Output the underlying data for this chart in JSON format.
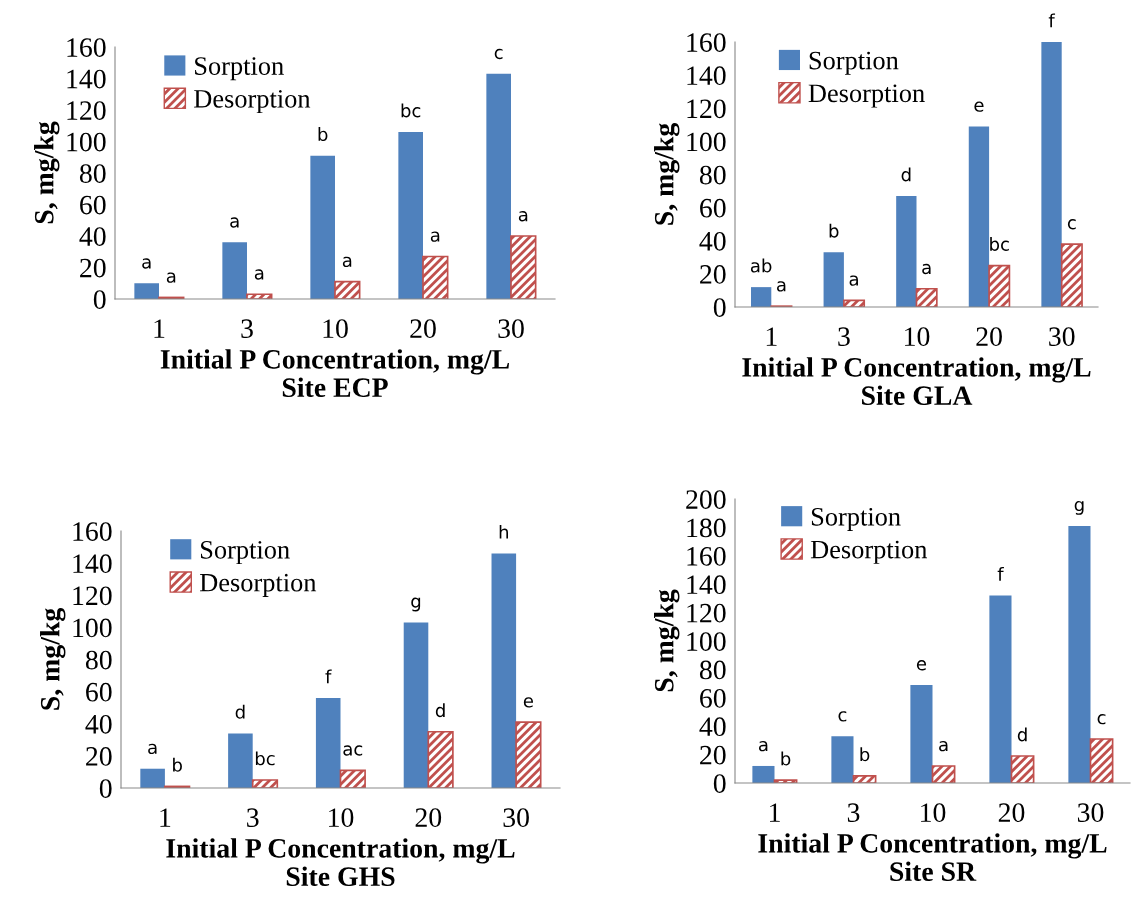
{
  "chart_data": [
    {
      "type": "bar",
      "title": "Site ECP",
      "xlabel": "Initial P Concentration, mg/L",
      "ylabel": "S, mg/kg",
      "categories": [
        "1",
        "3",
        "10",
        "20",
        "30"
      ],
      "ylim": [
        0,
        160
      ],
      "yticks": [
        0,
        20,
        40,
        60,
        80,
        100,
        120,
        140,
        160
      ],
      "grid": false,
      "legend": "top left",
      "series": [
        {
          "name": "Sorption",
          "color": "#4f81bd",
          "values": [
            10,
            36,
            91,
            106,
            143
          ],
          "value_labels": [
            "a",
            "a",
            "b",
            "bc",
            "c"
          ]
        },
        {
          "name": "Desorption",
          "color": "#c0504d",
          "values": [
            1,
            3,
            11,
            27,
            40
          ],
          "value_labels": [
            "a",
            "a",
            "a",
            "a",
            "a"
          ]
        }
      ]
    },
    {
      "type": "bar",
      "title": "Site GLA",
      "xlabel": "Initial P Concentration, mg/L",
      "ylabel": "S, mg/kg",
      "categories": [
        "1",
        "3",
        "10",
        "20",
        "30"
      ],
      "ylim": [
        0,
        160
      ],
      "yticks": [
        0,
        20,
        40,
        60,
        80,
        100,
        120,
        140,
        160
      ],
      "grid": false,
      "legend": "top left",
      "series": [
        {
          "name": "Sorption",
          "color": "#4f81bd",
          "values": [
            12,
            33,
            67,
            109,
            160
          ],
          "value_labels": [
            "ab",
            "b",
            "d",
            "e",
            "f"
          ]
        },
        {
          "name": "Desorption",
          "color": "#c0504d",
          "values": [
            0.5,
            4,
            11,
            25,
            38
          ],
          "value_labels": [
            "a",
            "a",
            "a",
            "bc",
            "c"
          ]
        }
      ]
    },
    {
      "type": "bar",
      "title": "Site GHS",
      "xlabel": "Initial P Concentration, mg/L",
      "ylabel": "S, mg/kg",
      "categories": [
        "1",
        "3",
        "10",
        "20",
        "30"
      ],
      "ylim": [
        0,
        160
      ],
      "yticks": [
        0,
        20,
        40,
        60,
        80,
        100,
        120,
        140,
        160
      ],
      "grid": false,
      "legend": "top left",
      "series": [
        {
          "name": "Sorption",
          "color": "#4f81bd",
          "values": [
            12,
            34,
            56,
            103,
            146
          ],
          "value_labels": [
            "a",
            "d",
            "f",
            "g",
            "h"
          ]
        },
        {
          "name": "Desorption",
          "color": "#c0504d",
          "values": [
            1,
            5,
            11,
            35,
            41
          ],
          "value_labels": [
            "b",
            "bc",
            "ac",
            "d",
            "e"
          ]
        }
      ]
    },
    {
      "type": "bar",
      "title": "Site SR",
      "xlabel": "Initial P Concentration, mg/L",
      "ylabel": "S, mg/kg",
      "categories": [
        "1",
        "3",
        "10",
        "20",
        "30"
      ],
      "ylim": [
        0,
        200
      ],
      "yticks": [
        0,
        20,
        40,
        60,
        80,
        100,
        120,
        140,
        160,
        180,
        200
      ],
      "grid": false,
      "legend": "top left",
      "series": [
        {
          "name": "Sorption",
          "color": "#4f81bd",
          "values": [
            12,
            33,
            69,
            132,
            181
          ],
          "value_labels": [
            "a",
            "c",
            "e",
            "f",
            "g"
          ]
        },
        {
          "name": "Desorption",
          "color": "#c0504d",
          "values": [
            2,
            5,
            12,
            19,
            31
          ],
          "value_labels": [
            "b",
            "b",
            "a",
            "d",
            "c"
          ]
        }
      ]
    }
  ]
}
